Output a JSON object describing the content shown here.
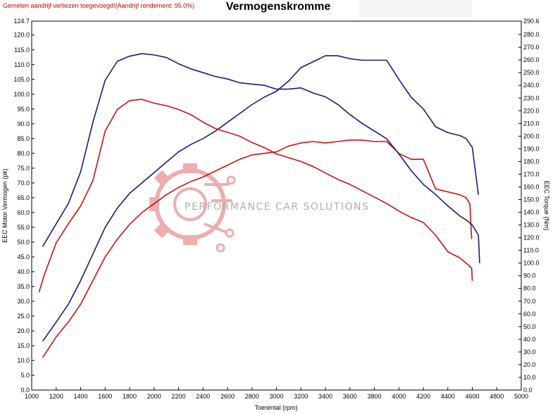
{
  "header": {
    "note": "Gemeten aandrijf verliezen toegevoegd!(Aandrijf rendement: 95.0%)",
    "title": "Vermogenskromme"
  },
  "watermark": {
    "text": "PERFORMANCE CAR SOLUTIONS"
  },
  "chart_data": {
    "type": "line",
    "title": "Vermogenskromme",
    "xlabel": "Toerental (rpm)",
    "ylabel": "EEC Motor Vermogen (pk)",
    "y2label": "EEC Torque (Nm)",
    "xlim": [
      1000,
      5000
    ],
    "ylim": [
      0.0,
      124.7
    ],
    "y2lim": [
      0.0,
      290.6
    ],
    "x_ticks": [
      "1000",
      "1200",
      "1400",
      "1600",
      "1800",
      "2000",
      "2200",
      "2400",
      "2600",
      "2800",
      "3000",
      "3200",
      "3400",
      "3600",
      "3800",
      "4000",
      "4200",
      "4400",
      "4600",
      "4800",
      "5000"
    ],
    "y_ticks": [
      "124.7",
      "120.0",
      "115.0",
      "110.0",
      "105.0",
      "100.0",
      "95.0",
      "90.0",
      "85.0",
      "80.0",
      "75.0",
      "70.0",
      "65.0",
      "60.0",
      "55.0",
      "50.0",
      "45.0",
      "40.0",
      "35.0",
      "30.0",
      "25.0",
      "20.0",
      "15.0",
      "10.0",
      "5.0",
      "0.0"
    ],
    "y2_ticks": [
      "290.6",
      "280.0",
      "270.0",
      "260.0",
      "250.0",
      "240.0",
      "230.0",
      "220.0",
      "210.0",
      "200.0",
      "190.0",
      "180.0",
      "170.0",
      "160.0",
      "150.0",
      "140.0",
      "130.0",
      "120.0",
      "110.0",
      "100.0",
      "90.0",
      "80.0",
      "70.0",
      "60.0",
      "50.0",
      "40.0",
      "30.0",
      "20.0",
      "10.0",
      "0.0"
    ],
    "grid": false,
    "legend": "none",
    "series": [
      {
        "axis": "left",
        "color": "#1a1a80",
        "points": [
          [
            1090,
            16.5
          ],
          [
            1200,
            23
          ],
          [
            1300,
            29
          ],
          [
            1400,
            37
          ],
          [
            1500,
            46
          ],
          [
            1600,
            55
          ],
          [
            1700,
            61.5
          ],
          [
            1800,
            66.5
          ],
          [
            1900,
            70
          ],
          [
            2000,
            73.5
          ],
          [
            2100,
            77
          ],
          [
            2200,
            80.5
          ],
          [
            2300,
            83
          ],
          [
            2400,
            85
          ],
          [
            2500,
            87.5
          ],
          [
            2600,
            90.5
          ],
          [
            2700,
            93.5
          ],
          [
            2800,
            96.5
          ],
          [
            2900,
            99
          ],
          [
            3000,
            101
          ],
          [
            3100,
            104.5
          ],
          [
            3200,
            109
          ],
          [
            3300,
            111
          ],
          [
            3400,
            113
          ],
          [
            3500,
            113
          ],
          [
            3600,
            112
          ],
          [
            3700,
            111.5
          ],
          [
            3800,
            111.5
          ],
          [
            3900,
            111.5
          ],
          [
            4000,
            105
          ],
          [
            4100,
            99
          ],
          [
            4200,
            95
          ],
          [
            4300,
            89
          ],
          [
            4400,
            87
          ],
          [
            4500,
            86
          ],
          [
            4550,
            85
          ],
          [
            4600,
            82
          ],
          [
            4650,
            66
          ]
        ]
      },
      {
        "axis": "left",
        "color": "#cc1111",
        "points": [
          [
            1090,
            11
          ],
          [
            1200,
            18
          ],
          [
            1300,
            23
          ],
          [
            1400,
            29
          ],
          [
            1500,
            37
          ],
          [
            1600,
            45
          ],
          [
            1700,
            51
          ],
          [
            1800,
            56
          ],
          [
            1900,
            60
          ],
          [
            2000,
            63
          ],
          [
            2100,
            66
          ],
          [
            2200,
            68.5
          ],
          [
            2300,
            70.5
          ],
          [
            2400,
            72
          ],
          [
            2500,
            74
          ],
          [
            2600,
            76
          ],
          [
            2700,
            78
          ],
          [
            2800,
            79.5
          ],
          [
            2900,
            80
          ],
          [
            3000,
            80.5
          ],
          [
            3100,
            82.5
          ],
          [
            3200,
            83.5
          ],
          [
            3300,
            84
          ],
          [
            3400,
            83.5
          ],
          [
            3500,
            84
          ],
          [
            3600,
            84.5
          ],
          [
            3700,
            84.5
          ],
          [
            3800,
            84
          ],
          [
            3900,
            84
          ],
          [
            4000,
            80
          ],
          [
            4100,
            78
          ],
          [
            4200,
            78
          ],
          [
            4300,
            68
          ],
          [
            4400,
            67
          ],
          [
            4500,
            66
          ],
          [
            4550,
            65
          ],
          [
            4580,
            63
          ],
          [
            4595,
            51
          ]
        ]
      },
      {
        "axis": "right",
        "color": "#1a1a80",
        "points": [
          [
            1090,
            113
          ],
          [
            1200,
            131
          ],
          [
            1300,
            147
          ],
          [
            1400,
            172
          ],
          [
            1500,
            211
          ],
          [
            1600,
            244
          ],
          [
            1700,
            259
          ],
          [
            1800,
            263
          ],
          [
            1900,
            265
          ],
          [
            2000,
            264
          ],
          [
            2100,
            262
          ],
          [
            2200,
            257
          ],
          [
            2300,
            253
          ],
          [
            2400,
            250
          ],
          [
            2500,
            247
          ],
          [
            2600,
            245
          ],
          [
            2700,
            242
          ],
          [
            2800,
            241
          ],
          [
            2900,
            240
          ],
          [
            3000,
            237
          ],
          [
            3100,
            237
          ],
          [
            3200,
            238
          ],
          [
            3300,
            234
          ],
          [
            3400,
            231
          ],
          [
            3500,
            225
          ],
          [
            3600,
            217
          ],
          [
            3700,
            210
          ],
          [
            3800,
            204
          ],
          [
            3900,
            198
          ],
          [
            4000,
            186
          ],
          [
            4100,
            173
          ],
          [
            4200,
            162
          ],
          [
            4300,
            154
          ],
          [
            4400,
            145
          ],
          [
            4500,
            137
          ],
          [
            4550,
            134
          ],
          [
            4600,
            130
          ],
          [
            4650,
            122
          ],
          [
            4660,
            100
          ]
        ]
      },
      {
        "axis": "right",
        "color": "#cc1111",
        "points": [
          [
            1060,
            77
          ],
          [
            1100,
            90
          ],
          [
            1200,
            116
          ],
          [
            1300,
            131
          ],
          [
            1400,
            145
          ],
          [
            1500,
            165
          ],
          [
            1600,
            204
          ],
          [
            1700,
            221
          ],
          [
            1800,
            228
          ],
          [
            1900,
            229
          ],
          [
            2000,
            226
          ],
          [
            2100,
            224
          ],
          [
            2200,
            221
          ],
          [
            2300,
            217
          ],
          [
            2400,
            211
          ],
          [
            2500,
            206
          ],
          [
            2600,
            203
          ],
          [
            2700,
            200
          ],
          [
            2800,
            195
          ],
          [
            2900,
            191
          ],
          [
            3000,
            186
          ],
          [
            3100,
            183
          ],
          [
            3200,
            180
          ],
          [
            3300,
            176
          ],
          [
            3400,
            171
          ],
          [
            3500,
            166
          ],
          [
            3600,
            162
          ],
          [
            3700,
            157
          ],
          [
            3800,
            152
          ],
          [
            3900,
            147
          ],
          [
            4000,
            141
          ],
          [
            4100,
            136
          ],
          [
            4200,
            132
          ],
          [
            4300,
            122
          ],
          [
            4400,
            109
          ],
          [
            4500,
            104
          ],
          [
            4550,
            100
          ],
          [
            4595,
            96
          ],
          [
            4600,
            86
          ]
        ]
      }
    ]
  }
}
